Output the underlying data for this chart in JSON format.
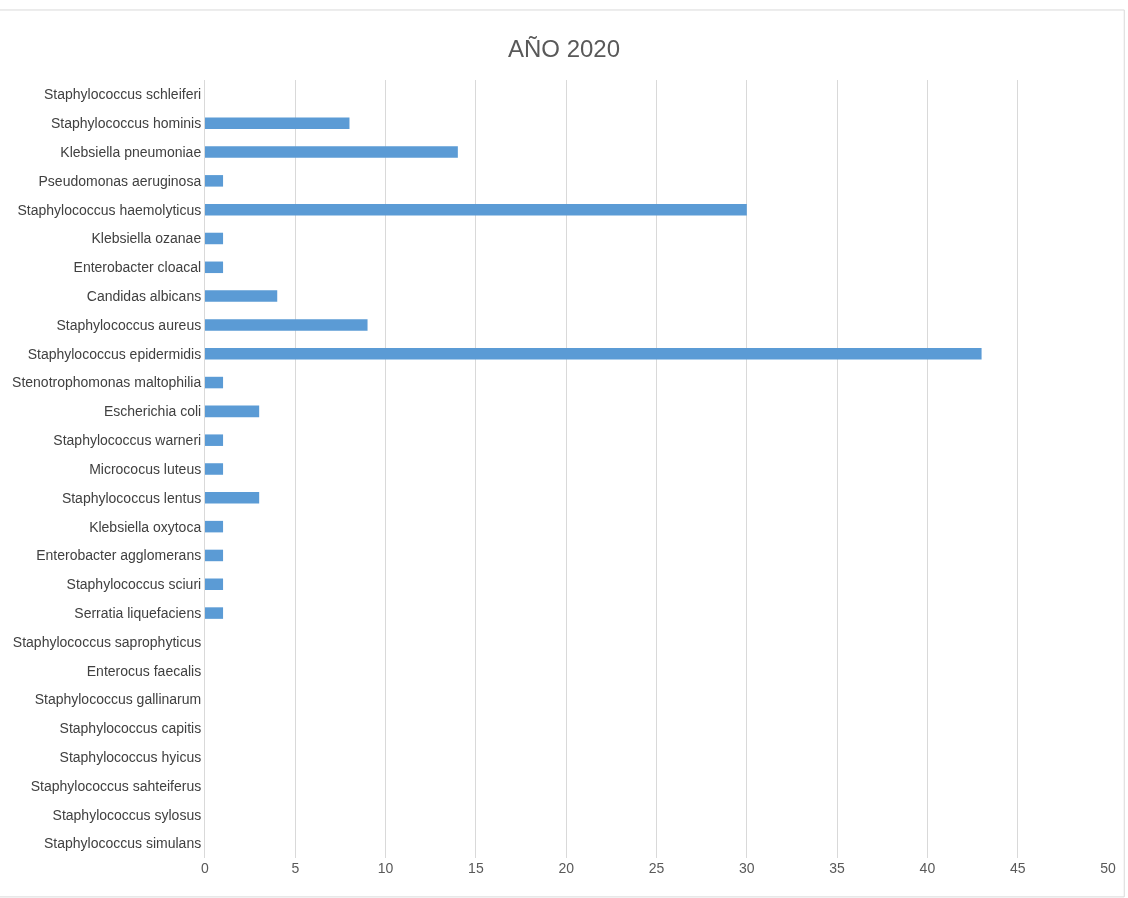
{
  "chart_data": {
    "type": "bar",
    "orientation": "horizontal",
    "title": "AÑO 2020",
    "categories": [
      "Staphylococcus schleiferi",
      "Staphylococcus hominis",
      "Klebsiella pneumoniae",
      "Pseudomonas aeruginosa",
      "Staphylococcus haemolyticus",
      "Klebsiella ozanae",
      "Enterobacter cloacal",
      "Candidas albicans",
      "Staphylococcus aureus",
      "Staphylococcus epidermidis",
      "Stenotrophomonas maltophilia",
      "Escherichia coli",
      "Staphylococcus warneri",
      "Micrococus luteus",
      "Staphylococcus lentus",
      "Klebsiella oxytoca",
      "Enterobacter agglomerans",
      "Staphylococcus sciuri",
      "Serratia liquefaciens",
      "Staphylococcus saprophyticus",
      "Enterocus faecalis",
      "Staphylococcus gallinarum",
      "Staphylococcus capitis",
      "Staphylococcus hyicus",
      "Staphylococcus sahteiferus",
      "Staphylococcus sylosus",
      "Staphylococcus simulans"
    ],
    "values": [
      0,
      8,
      14,
      1,
      30,
      1,
      1,
      4,
      9,
      43,
      1,
      3,
      1,
      1,
      3,
      1,
      1,
      1,
      1,
      0,
      0,
      0,
      0,
      0,
      0,
      0,
      0
    ],
    "color": "#5b9bd5",
    "xlim": [
      0,
      50
    ],
    "xticks": [
      0,
      5,
      10,
      15,
      20,
      25,
      30,
      35,
      40,
      45,
      50
    ],
    "grid": "x"
  }
}
